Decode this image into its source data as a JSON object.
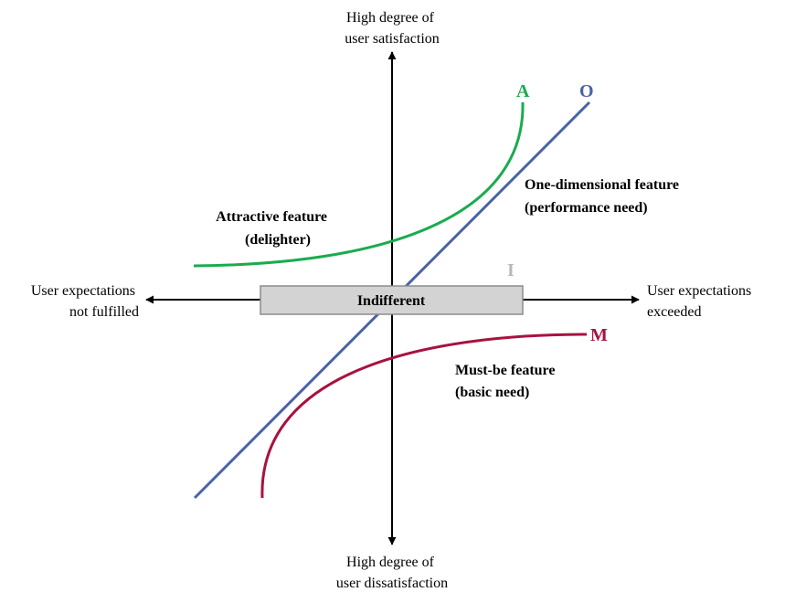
{
  "axes": {
    "top_label": [
      "High degree of",
      "user satisfaction"
    ],
    "bottom_label": [
      "High degree of",
      "user dissatisfaction"
    ],
    "left_label": [
      "User expectations",
      "not fulfilled"
    ],
    "right_label": [
      "User expectations",
      "exceeded"
    ]
  },
  "curves": {
    "attractive": {
      "letter": "A",
      "label": [
        "Attractive feature",
        "(delighter)"
      ]
    },
    "one_dimensional": {
      "letter": "O",
      "label": [
        "One-dimensional feature",
        "(performance need)"
      ]
    },
    "indifferent": {
      "letter": "I",
      "label": "Indifferent"
    },
    "must_be": {
      "letter": "M",
      "label": [
        "Must-be feature",
        "(basic need)"
      ]
    }
  },
  "colors": {
    "attractive": "#1aab4f",
    "one_dimensional": "#4a62a8",
    "indifferent_letter": "#b8b8b8",
    "indifferent_box_fill": "#d3d3d3",
    "indifferent_box_stroke": "#8c8c8c",
    "must_be": "#a8123f",
    "axis": "#000000"
  }
}
